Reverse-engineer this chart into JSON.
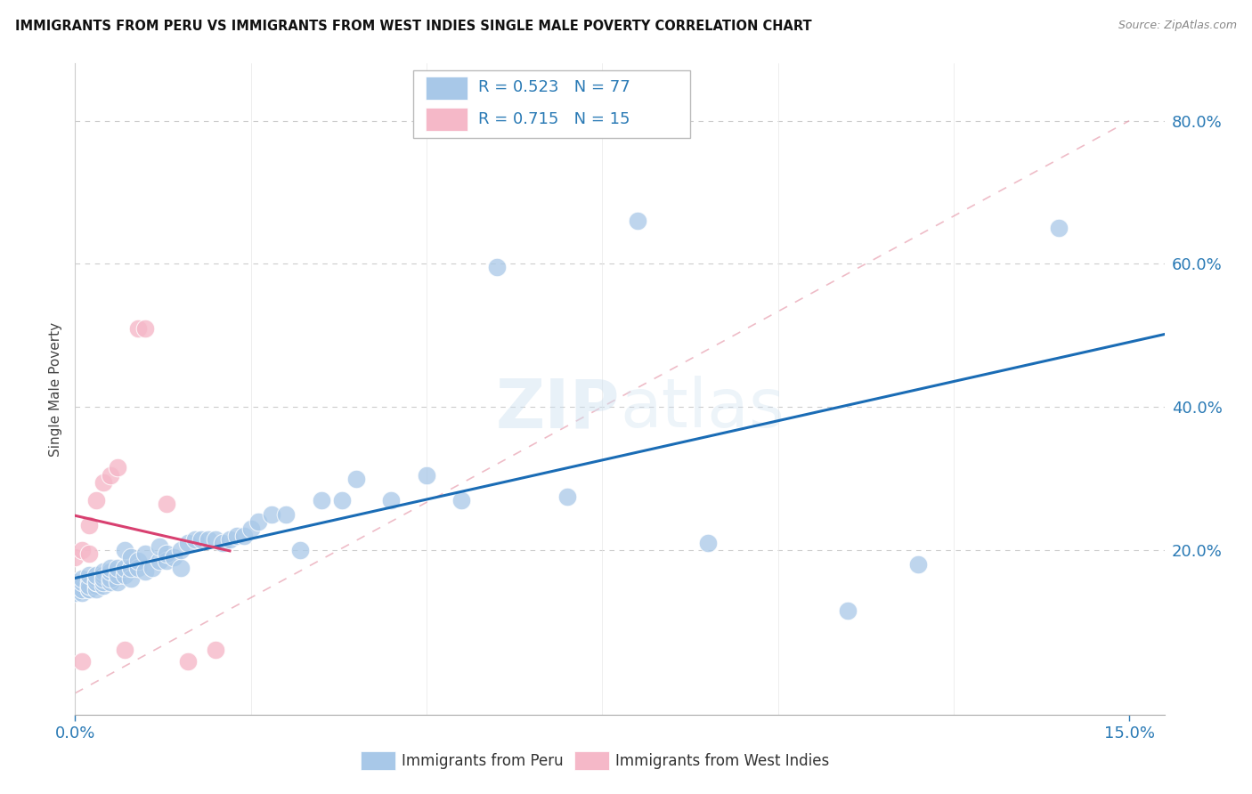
{
  "title": "IMMIGRANTS FROM PERU VS IMMIGRANTS FROM WEST INDIES SINGLE MALE POVERTY CORRELATION CHART",
  "source": "Source: ZipAtlas.com",
  "ylabel": "Single Male Poverty",
  "blue_color": "#a8c8e8",
  "pink_color": "#f5b8c8",
  "trend_blue": "#1a6cb5",
  "trend_pink": "#d84070",
  "diag_color": "#e0b0c0",
  "watermark": "ZIPatlas",
  "peru_x": [
    0.0,
    0.0,
    0.001,
    0.001,
    0.001,
    0.001,
    0.001,
    0.001,
    0.002,
    0.002,
    0.002,
    0.002,
    0.002,
    0.002,
    0.003,
    0.003,
    0.003,
    0.003,
    0.003,
    0.003,
    0.004,
    0.004,
    0.004,
    0.004,
    0.004,
    0.005,
    0.005,
    0.005,
    0.005,
    0.006,
    0.006,
    0.006,
    0.007,
    0.007,
    0.007,
    0.008,
    0.008,
    0.008,
    0.009,
    0.009,
    0.01,
    0.01,
    0.011,
    0.012,
    0.012,
    0.013,
    0.013,
    0.014,
    0.015,
    0.015,
    0.016,
    0.017,
    0.018,
    0.019,
    0.02,
    0.021,
    0.022,
    0.023,
    0.024,
    0.025,
    0.026,
    0.028,
    0.03,
    0.032,
    0.035,
    0.038,
    0.04,
    0.045,
    0.05,
    0.055,
    0.06,
    0.07,
    0.08,
    0.09,
    0.11,
    0.12,
    0.14
  ],
  "peru_y": [
    0.155,
    0.14,
    0.145,
    0.15,
    0.14,
    0.145,
    0.155,
    0.16,
    0.145,
    0.15,
    0.155,
    0.145,
    0.15,
    0.165,
    0.15,
    0.145,
    0.155,
    0.16,
    0.155,
    0.165,
    0.15,
    0.155,
    0.165,
    0.17,
    0.16,
    0.155,
    0.16,
    0.17,
    0.175,
    0.155,
    0.165,
    0.175,
    0.165,
    0.175,
    0.2,
    0.16,
    0.175,
    0.19,
    0.175,
    0.185,
    0.17,
    0.195,
    0.175,
    0.185,
    0.205,
    0.185,
    0.195,
    0.19,
    0.175,
    0.2,
    0.21,
    0.215,
    0.215,
    0.215,
    0.215,
    0.21,
    0.215,
    0.22,
    0.22,
    0.23,
    0.24,
    0.25,
    0.25,
    0.2,
    0.27,
    0.27,
    0.3,
    0.27,
    0.305,
    0.27,
    0.595,
    0.275,
    0.66,
    0.21,
    0.115,
    0.18,
    0.65
  ],
  "wi_x": [
    0.0,
    0.001,
    0.001,
    0.002,
    0.002,
    0.003,
    0.004,
    0.005,
    0.006,
    0.007,
    0.009,
    0.01,
    0.013,
    0.016,
    0.02
  ],
  "wi_y": [
    0.19,
    0.2,
    0.045,
    0.195,
    0.235,
    0.27,
    0.295,
    0.305,
    0.315,
    0.06,
    0.51,
    0.51,
    0.265,
    0.045,
    0.06
  ],
  "xlim": [
    0.0,
    0.155
  ],
  "ylim": [
    -0.03,
    0.88
  ],
  "yticks": [
    0.2,
    0.4,
    0.6,
    0.8
  ],
  "ytick_labels": [
    "20.0%",
    "40.0%",
    "60.0%",
    "80.0%"
  ],
  "xtick_labels": [
    "0.0%",
    "15.0%"
  ],
  "xticks": [
    0.0,
    0.15
  ]
}
